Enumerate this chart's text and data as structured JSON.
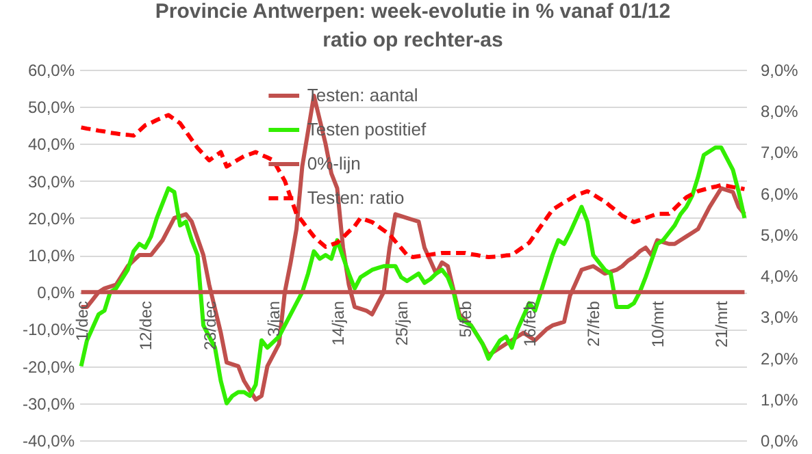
{
  "chart_data": {
    "type": "line",
    "title": "Provincie Antwerpen: week-evolutie in %  vanaf 01/12",
    "subtitle": "ratio op rechter-as",
    "categories": [
      "1/dec",
      null,
      null,
      null,
      null,
      null,
      null,
      null,
      null,
      null,
      null,
      "12/dec",
      null,
      null,
      null,
      null,
      null,
      null,
      null,
      null,
      null,
      null,
      "23/dec",
      null,
      null,
      null,
      null,
      null,
      null,
      null,
      null,
      null,
      null,
      "3/jan",
      null,
      null,
      null,
      null,
      null,
      null,
      null,
      null,
      null,
      null,
      "14/jan",
      null,
      null,
      null,
      null,
      null,
      null,
      null,
      null,
      null,
      null,
      "25/jan",
      null,
      null,
      null,
      null,
      null,
      null,
      null,
      null,
      null,
      null,
      "5/feb",
      null,
      null,
      null,
      null,
      null,
      null,
      null,
      null,
      null,
      null,
      "16/feb",
      null,
      null,
      null,
      null,
      null,
      null,
      null,
      null,
      null,
      null,
      "27/feb",
      null,
      null,
      null,
      null,
      null,
      null,
      null,
      null,
      null,
      null,
      "10/mrt",
      null,
      null,
      null,
      null,
      null,
      null,
      null,
      null,
      null,
      null,
      "21/mrt",
      null,
      null,
      null,
      null
    ],
    "ylim": [
      -40,
      60
    ],
    "yticks": [
      {
        "value": -40,
        "label": "-40,0%"
      },
      {
        "value": -30,
        "label": "-30,0%"
      },
      {
        "value": -20,
        "label": "-20,0%"
      },
      {
        "value": -10,
        "label": "-10,0%"
      },
      {
        "value": 0,
        "label": "0,0%"
      },
      {
        "value": 10,
        "label": "10,0%"
      },
      {
        "value": 20,
        "label": "20,0%"
      },
      {
        "value": 30,
        "label": "30,0%"
      },
      {
        "value": 40,
        "label": "40,0%"
      },
      {
        "value": 50,
        "label": "50,0%"
      },
      {
        "value": 60,
        "label": "60,0%"
      }
    ],
    "y2lim": [
      0,
      9
    ],
    "y2ticks": [
      {
        "value": 0,
        "label": "0,0%"
      },
      {
        "value": 1,
        "label": "1,0%"
      },
      {
        "value": 2,
        "label": "2,0%"
      },
      {
        "value": 3,
        "label": "3,0%"
      },
      {
        "value": 4,
        "label": "4,0%"
      },
      {
        "value": 5,
        "label": "5,0%"
      },
      {
        "value": 6,
        "label": "6,0%"
      },
      {
        "value": 7,
        "label": "7,0%"
      },
      {
        "value": 8,
        "label": "8,0%"
      },
      {
        "value": 9,
        "label": "9,0%"
      }
    ],
    "grid": "y",
    "legend": "top",
    "series": [
      {
        "name": "Testen: aantal",
        "color": "#c0504d",
        "line_style": "solid",
        "values": [
          -4,
          -4,
          -2,
          0,
          1,
          1.5,
          2,
          4.5,
          7,
          8.5,
          10,
          10,
          10,
          12,
          14,
          17,
          20,
          20.5,
          21,
          19,
          14.5,
          10,
          2,
          -4.5,
          -11,
          -19,
          -19.5,
          -20,
          -24,
          -26.5,
          -29,
          -28,
          -20,
          -17,
          -14,
          0,
          8,
          17,
          34,
          43.5,
          53,
          46.5,
          40,
          32,
          28,
          12,
          2,
          -4,
          -4.5,
          -5,
          -6,
          -3,
          0,
          12,
          21,
          20.5,
          20,
          19.5,
          19,
          12,
          8.5,
          5,
          8,
          7,
          0.5,
          -6,
          -7.5,
          -9,
          -11.5,
          -14,
          -17,
          -16,
          -15,
          -14,
          -13,
          -12,
          -11,
          -12,
          -13,
          -11.5,
          -10,
          -9,
          -8.5,
          -8,
          -1,
          2.5,
          6,
          6.5,
          7,
          6,
          5,
          5.5,
          6,
          7,
          8.5,
          9.5,
          11,
          12,
          10,
          14,
          13.5,
          13,
          13,
          14,
          15,
          16,
          17,
          20,
          23,
          25.5,
          28,
          27.5,
          27,
          23,
          21
        ]
      },
      {
        "name": "Testen postitief",
        "color": "#33ee00",
        "line_style": "solid",
        "values": [
          -20,
          -13,
          -9.5,
          -6,
          -5,
          0,
          1,
          3.5,
          6,
          11,
          13,
          12,
          15,
          20,
          24,
          28,
          27,
          18,
          19,
          14,
          10,
          -9,
          -12,
          -15,
          -24,
          -30,
          -28,
          -27,
          -27,
          -28,
          -25,
          -13,
          -15,
          -13.5,
          -12,
          -9,
          -6,
          -3,
          0,
          5,
          11,
          9,
          10,
          9,
          14,
          9.5,
          5,
          1,
          4,
          5,
          6,
          6.5,
          7,
          7,
          7,
          4,
          3,
          4,
          5,
          2.5,
          3.5,
          5,
          6,
          4,
          0,
          -7,
          -8,
          -9,
          -11.5,
          -14,
          -18,
          -15.5,
          -13,
          -12,
          -15,
          -10,
          -6.5,
          -3,
          -5,
          0,
          5,
          10,
          14,
          13,
          16,
          19.5,
          23,
          19,
          10,
          8,
          6,
          5,
          -4,
          -4,
          -4,
          -3,
          0,
          4,
          8.5,
          13,
          14,
          16,
          18,
          21,
          23,
          26,
          31,
          37,
          38,
          39,
          39,
          36,
          33,
          27,
          20
        ]
      },
      {
        "name": "0%-lijn",
        "color": "#c0504d",
        "line_style": "solid",
        "values": [
          0,
          0,
          0,
          0,
          0,
          0,
          0,
          0,
          0,
          0,
          0,
          0,
          0,
          0,
          0,
          0,
          0,
          0,
          0,
          0,
          0,
          0,
          0,
          0,
          0,
          0,
          0,
          0,
          0,
          0,
          0,
          0,
          0,
          0,
          0,
          0,
          0,
          0,
          0,
          0,
          0,
          0,
          0,
          0,
          0,
          0,
          0,
          0,
          0,
          0,
          0,
          0,
          0,
          0,
          0,
          0,
          0,
          0,
          0,
          0,
          0,
          0,
          0,
          0,
          0,
          0,
          0,
          0,
          0,
          0,
          0,
          0,
          0,
          0,
          0,
          0,
          0,
          0,
          0,
          0,
          0,
          0,
          0,
          0,
          0,
          0,
          0,
          0,
          0,
          0,
          0,
          0,
          0,
          0,
          0,
          0,
          0,
          0,
          0,
          0,
          0,
          0,
          0,
          0,
          0,
          0,
          0,
          0,
          0,
          0,
          0,
          0,
          0,
          0,
          0
        ]
      },
      {
        "name": "Testen: ratio",
        "color": "#ff0000",
        "line_style": "dashed",
        "axis": "y2",
        "values": [
          7.6,
          7.57,
          7.55,
          7.52,
          7.5,
          7.47,
          7.45,
          7.43,
          7.42,
          7.4,
          7.52,
          7.65,
          7.71,
          7.78,
          7.84,
          7.9,
          7.8,
          7.7,
          7.5,
          7.3,
          7.1,
          6.95,
          6.8,
          6.9,
          7.0,
          6.65,
          6.73,
          6.82,
          6.9,
          6.95,
          7.0,
          6.93,
          6.87,
          6.8,
          6.55,
          6.3,
          5.9,
          5.5,
          5.32,
          5.13,
          4.95,
          4.82,
          4.7,
          4.75,
          4.8,
          4.93,
          5.07,
          5.2,
          5.4,
          5.35,
          5.3,
          5.2,
          5.1,
          5.0,
          4.83,
          4.67,
          4.5,
          4.45,
          4.47,
          4.49,
          4.51,
          4.53,
          4.55,
          4.55,
          4.55,
          4.55,
          4.55,
          4.52,
          4.5,
          4.47,
          4.45,
          4.46,
          4.47,
          4.49,
          4.5,
          4.6,
          4.7,
          4.8,
          5.0,
          5.2,
          5.4,
          5.6,
          5.69,
          5.78,
          5.86,
          5.95,
          6.0,
          6.05,
          5.97,
          5.88,
          5.8,
          5.68,
          5.57,
          5.45,
          5.38,
          5.3,
          5.35,
          5.4,
          5.45,
          5.5,
          5.5,
          5.5,
          5.63,
          5.77,
          5.9,
          5.98,
          6.05,
          6.09,
          6.13,
          6.16,
          6.2,
          6.18,
          6.15,
          6.13,
          6.1
        ]
      }
    ]
  }
}
